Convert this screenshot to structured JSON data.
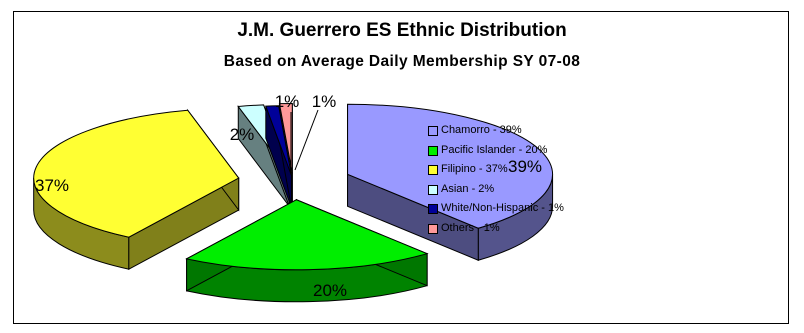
{
  "chart_data": {
    "type": "pie",
    "title": "J.M. Guerrero ES Ethnic Distribution",
    "subtitle": "Based on Average Daily Membership SY 07-08",
    "categories": [
      "Chamorro",
      "Pacific Islander",
      "Filipino",
      "Asian",
      "White/Non-Hispanic",
      "Others"
    ],
    "values": [
      39,
      20,
      37,
      2,
      1,
      1
    ],
    "data_labels": [
      "39%",
      "20%",
      "37%",
      "2%",
      "1%",
      "1%"
    ],
    "legend": {
      "placement": "right",
      "entries": [
        "Chamorro - 39%",
        "Pacific Islander - 20%",
        "Filipino - 37%",
        "Asian - 2%",
        "White/Non-Hispanic - 1%",
        "Others - 1%"
      ]
    },
    "colors": [
      "#9999FF",
      "#00EE00",
      "#FFFF33",
      "#CCFFFF",
      "#000099",
      "#FF9999"
    ],
    "style": "3d-exploded"
  }
}
